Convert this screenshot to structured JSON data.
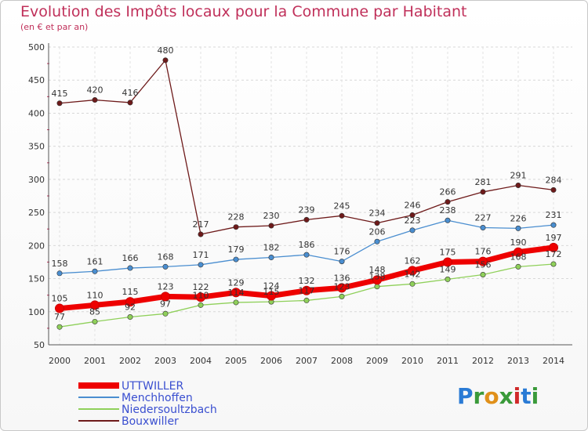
{
  "title": "Evolution des Impôts locaux pour la Commune par Habitant",
  "subtitle": "(en € et par an)",
  "logo": {
    "letters": [
      "P",
      "r",
      "o",
      "x",
      "i",
      "t",
      "i"
    ],
    "colors": [
      "#2a7bd5",
      "#3a9a3a",
      "#e0901a",
      "#3a9a3a",
      "#d02a2a",
      "#2a7bd5",
      "#3a9a3a"
    ]
  },
  "chart_data": {
    "type": "line",
    "x": [
      "2000",
      "2001",
      "2002",
      "2003",
      "2004",
      "2005",
      "2006",
      "2007",
      "2008",
      "2009",
      "2010",
      "2011",
      "2012",
      "2013",
      "2014"
    ],
    "ylim": [
      50,
      500
    ],
    "yticks": [
      "50",
      "100",
      "150",
      "200",
      "250",
      "300",
      "350",
      "400",
      "450",
      "500"
    ],
    "grid": true,
    "legend_position": "bottom-left",
    "series": [
      {
        "name": "Bouxwiller",
        "color": "#6e1a1a",
        "values": [
          415,
          420,
          416,
          480,
          217,
          228,
          230,
          239,
          245,
          234,
          246,
          266,
          281,
          291,
          284
        ],
        "labels": [
          "415",
          "420",
          "416",
          "480",
          "217",
          "228",
          "230",
          "239",
          "245",
          "234",
          "246",
          "266",
          "281",
          "291",
          "284"
        ]
      },
      {
        "name": "Menchhoffen",
        "color": "#4a8ed0",
        "values": [
          158,
          161,
          166,
          168,
          171,
          179,
          182,
          186,
          176,
          206,
          223,
          238,
          227,
          226,
          231
        ],
        "labels": [
          "158",
          "161",
          "166",
          "168",
          "171",
          "179",
          "182",
          "186",
          "176",
          "206",
          "223",
          "238",
          "227",
          "226",
          "231"
        ]
      },
      {
        "name": "Niedersoultzbach",
        "color": "#8fd05a",
        "values": [
          77,
          85,
          92,
          97,
          110,
          114,
          115,
          117,
          123,
          138,
          142,
          149,
          156,
          168,
          172
        ],
        "labels": [
          "77",
          "85",
          "92",
          "97",
          "110",
          "114",
          "115",
          "117",
          "123",
          "138",
          "142",
          "149",
          "156",
          "168",
          "172"
        ]
      },
      {
        "name": "UTTWILLER",
        "color": "#ee0000",
        "values": [
          105,
          110,
          115,
          123,
          122,
          129,
          124,
          132,
          136,
          148,
          162,
          175,
          176,
          190,
          197
        ],
        "labels": [
          "105",
          "110",
          "115",
          "123",
          "122",
          "129",
          "124",
          "132",
          "136",
          "148",
          "162",
          "175",
          "176",
          "190",
          "197"
        ]
      }
    ]
  }
}
